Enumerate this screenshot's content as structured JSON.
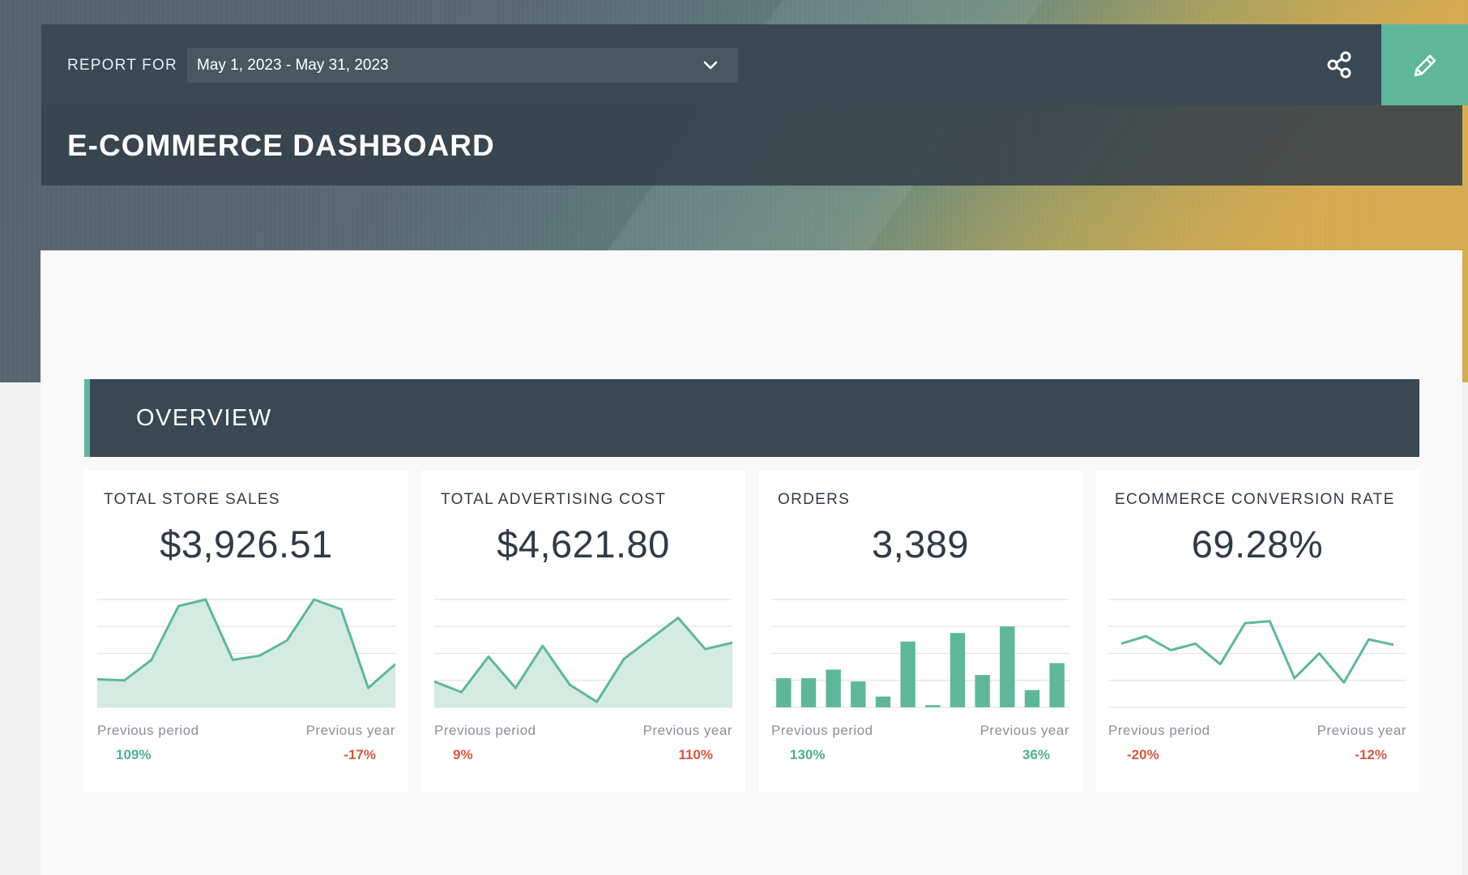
{
  "header": {
    "report_label": "REPORT FOR",
    "date_range": "May 1, 2023 - May 31, 2023",
    "share_icon": "share-icon",
    "edit_icon": "pencil-icon",
    "accent_color": "#5fb79a",
    "title": "E-COMMERCE DASHBOARD"
  },
  "section": {
    "title": "OVERVIEW"
  },
  "cards": [
    {
      "title": "TOTAL STORE SALES",
      "value": "$3,926.51",
      "prev_period_label": "Previous period",
      "prev_period_value": "109%",
      "prev_period_trend": "positive",
      "prev_year_label": "Previous year",
      "prev_year_value": "-17%",
      "prev_year_trend": "negative"
    },
    {
      "title": "TOTAL ADVERTISING COST",
      "value": "$4,621.80",
      "prev_period_label": "Previous period",
      "prev_period_value": "9%",
      "prev_period_trend": "negative",
      "prev_year_label": "Previous year",
      "prev_year_value": "110%",
      "prev_year_trend": "negative"
    },
    {
      "title": "ORDERS",
      "value": "3,389",
      "prev_period_label": "Previous period",
      "prev_period_value": "130%",
      "prev_period_trend": "positive",
      "prev_year_label": "Previous year",
      "prev_year_value": "36%",
      "prev_year_trend": "positive"
    },
    {
      "title": "ECOMMERCE CONVERSION RATE",
      "value": "69.28%",
      "prev_period_label": "Previous period",
      "prev_period_value": "-20%",
      "prev_period_trend": "negative",
      "prev_year_label": "Previous year",
      "prev_year_value": "-12%",
      "prev_year_trend": "negative"
    }
  ],
  "chart_data": [
    {
      "type": "area",
      "values": [
        26,
        25,
        44,
        94,
        100,
        44,
        48,
        62,
        100,
        91,
        18,
        40
      ],
      "ylim": [
        0,
        100
      ],
      "grid": true
    },
    {
      "type": "area",
      "values": [
        24,
        14,
        47,
        18,
        57,
        21,
        5,
        45,
        64,
        83,
        54,
        60
      ],
      "ylim": [
        0,
        100
      ],
      "grid": true
    },
    {
      "type": "bar",
      "values": [
        27,
        27,
        35,
        24,
        10,
        61,
        2,
        69,
        30,
        75,
        16,
        41
      ],
      "ylim": [
        0,
        100
      ],
      "grid": true
    },
    {
      "type": "line",
      "values": [
        59,
        66,
        53,
        59,
        40,
        78,
        80,
        27,
        50,
        23,
        63,
        58
      ],
      "ylim": [
        0,
        100
      ],
      "grid": true
    }
  ]
}
